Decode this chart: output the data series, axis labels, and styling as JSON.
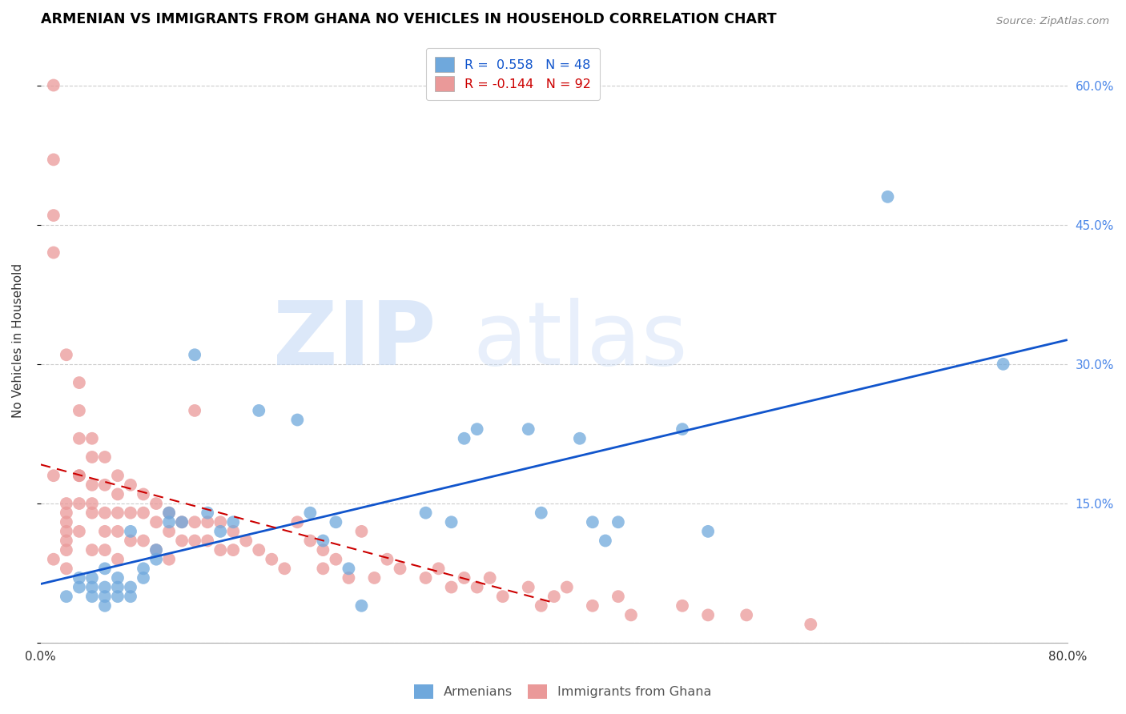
{
  "title": "ARMENIAN VS IMMIGRANTS FROM GHANA NO VEHICLES IN HOUSEHOLD CORRELATION CHART",
  "source": "Source: ZipAtlas.com",
  "ylabel": "No Vehicles in Household",
  "watermark_zip": "ZIP",
  "watermark_atlas": "atlas",
  "legend_armenian": "R =  0.558   N = 48",
  "legend_ghana": "R = -0.144   N = 92",
  "xlim": [
    0.0,
    0.8
  ],
  "ylim": [
    0.0,
    0.65
  ],
  "xticks": [
    0.0,
    0.1,
    0.2,
    0.3,
    0.4,
    0.5,
    0.6,
    0.7,
    0.8
  ],
  "yticks": [
    0.0,
    0.15,
    0.3,
    0.45,
    0.6
  ],
  "ytick_labels": [
    "",
    "15.0%",
    "30.0%",
    "45.0%",
    "60.0%"
  ],
  "xtick_labels": [
    "0.0%",
    "",
    "",
    "",
    "",
    "",
    "",
    "",
    "80.0%"
  ],
  "blue_color": "#6fa8dc",
  "pink_color": "#ea9999",
  "blue_line_color": "#1155cc",
  "pink_line_color": "#cc0000",
  "armenians_x": [
    0.02,
    0.03,
    0.03,
    0.04,
    0.04,
    0.05,
    0.05,
    0.05,
    0.06,
    0.06,
    0.06,
    0.07,
    0.07,
    0.08,
    0.08,
    0.09,
    0.1,
    0.1,
    0.11,
    0.12,
    0.13,
    0.14,
    0.17,
    0.2,
    0.21,
    0.22,
    0.23,
    0.24,
    0.25,
    0.3,
    0.32,
    0.33,
    0.34,
    0.38,
    0.39,
    0.42,
    0.43,
    0.44,
    0.45,
    0.5,
    0.52,
    0.66,
    0.75,
    0.04,
    0.05,
    0.07,
    0.09,
    0.15
  ],
  "armenians_y": [
    0.05,
    0.06,
    0.07,
    0.05,
    0.07,
    0.05,
    0.06,
    0.08,
    0.05,
    0.06,
    0.07,
    0.05,
    0.12,
    0.07,
    0.08,
    0.1,
    0.13,
    0.14,
    0.13,
    0.31,
    0.14,
    0.12,
    0.25,
    0.24,
    0.14,
    0.11,
    0.13,
    0.08,
    0.04,
    0.14,
    0.13,
    0.22,
    0.23,
    0.23,
    0.14,
    0.22,
    0.13,
    0.11,
    0.13,
    0.23,
    0.12,
    0.48,
    0.3,
    0.06,
    0.04,
    0.06,
    0.09,
    0.13
  ],
  "ghana_x": [
    0.01,
    0.01,
    0.01,
    0.01,
    0.01,
    0.02,
    0.02,
    0.02,
    0.02,
    0.02,
    0.02,
    0.02,
    0.03,
    0.03,
    0.03,
    0.03,
    0.03,
    0.03,
    0.04,
    0.04,
    0.04,
    0.04,
    0.04,
    0.05,
    0.05,
    0.05,
    0.05,
    0.06,
    0.06,
    0.06,
    0.06,
    0.06,
    0.07,
    0.07,
    0.07,
    0.08,
    0.08,
    0.08,
    0.09,
    0.09,
    0.09,
    0.1,
    0.1,
    0.1,
    0.11,
    0.11,
    0.12,
    0.12,
    0.12,
    0.13,
    0.13,
    0.14,
    0.14,
    0.15,
    0.15,
    0.16,
    0.17,
    0.18,
    0.19,
    0.2,
    0.21,
    0.22,
    0.22,
    0.23,
    0.24,
    0.25,
    0.26,
    0.27,
    0.28,
    0.3,
    0.31,
    0.32,
    0.33,
    0.34,
    0.35,
    0.36,
    0.38,
    0.39,
    0.4,
    0.41,
    0.43,
    0.45,
    0.46,
    0.5,
    0.52,
    0.55,
    0.6,
    0.01,
    0.02,
    0.03,
    0.04,
    0.05
  ],
  "ghana_y": [
    0.6,
    0.52,
    0.42,
    0.18,
    0.09,
    0.15,
    0.14,
    0.13,
    0.12,
    0.11,
    0.1,
    0.08,
    0.28,
    0.25,
    0.22,
    0.18,
    0.15,
    0.12,
    0.22,
    0.2,
    0.17,
    0.14,
    0.1,
    0.2,
    0.17,
    0.14,
    0.1,
    0.18,
    0.16,
    0.14,
    0.12,
    0.09,
    0.17,
    0.14,
    0.11,
    0.16,
    0.14,
    0.11,
    0.15,
    0.13,
    0.1,
    0.14,
    0.12,
    0.09,
    0.13,
    0.11,
    0.25,
    0.13,
    0.11,
    0.13,
    0.11,
    0.13,
    0.1,
    0.12,
    0.1,
    0.11,
    0.1,
    0.09,
    0.08,
    0.13,
    0.11,
    0.1,
    0.08,
    0.09,
    0.07,
    0.12,
    0.07,
    0.09,
    0.08,
    0.07,
    0.08,
    0.06,
    0.07,
    0.06,
    0.07,
    0.05,
    0.06,
    0.04,
    0.05,
    0.06,
    0.04,
    0.05,
    0.03,
    0.04,
    0.03,
    0.03,
    0.02,
    0.46,
    0.31,
    0.18,
    0.15,
    0.12
  ],
  "bg_color": "#ffffff",
  "grid_color": "#cccccc",
  "title_color": "#000000",
  "axis_label_color": "#333333",
  "tick_color_right": "#4a86e8",
  "figsize": [
    14.06,
    8.92
  ],
  "dpi": 100
}
